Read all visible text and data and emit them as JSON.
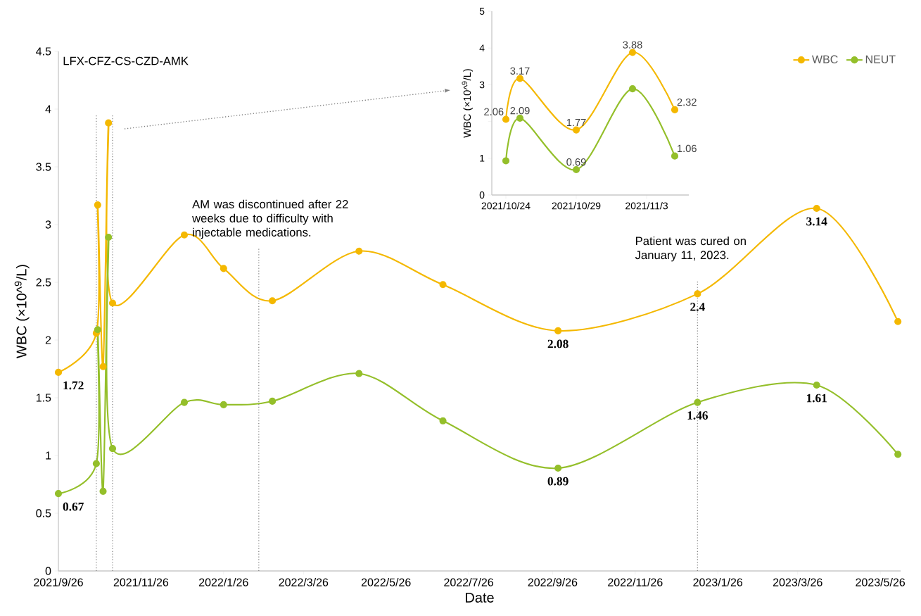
{
  "chart_data": [
    {
      "type": "line",
      "xlabel": "Date",
      "ylabel": "WBC (×10^$^{9}$/L)",
      "x": [
        "2021-09-26",
        "2021-10-24",
        "2021-10-25",
        "2021-10-29",
        "2021-11-02",
        "2021-11-05",
        "2021-12-28",
        "2022-01-26",
        "2022-03-03",
        "2022-05-06",
        "2022-07-07",
        "2022-09-30",
        "2023-01-11",
        "2023-04-09",
        "2023-06-08"
      ],
      "xlim": [
        "2021-09-26",
        "2023-06-10"
      ],
      "xticks": [
        {
          "value": "2021-09-26",
          "label": "2021/9/26"
        },
        {
          "value": "2021-11-26",
          "label": "2021/11/26"
        },
        {
          "value": "2022-01-26",
          "label": "2022/1/26"
        },
        {
          "value": "2022-03-26",
          "label": "2022/3/26"
        },
        {
          "value": "2022-05-26",
          "label": "2022/5/26"
        },
        {
          "value": "2022-07-26",
          "label": "2022/7/26"
        },
        {
          "value": "2022-09-26",
          "label": "2022/9/26"
        },
        {
          "value": "2022-11-26",
          "label": "2022/11/26"
        },
        {
          "value": "2023-01-26",
          "label": "2023/1/26"
        },
        {
          "value": "2023-03-26",
          "label": "2023/3/26"
        },
        {
          "value": "2023-05-26",
          "label": "2023/5/26"
        }
      ],
      "ylim": [
        0,
        4.5
      ],
      "yticks": [
        0,
        0.5,
        1,
        1.5,
        2,
        2.5,
        3,
        3.5,
        4,
        4.5
      ],
      "marker": "circle",
      "legend": "top right",
      "series": [
        {
          "name": "WBC",
          "color": "#f4b800",
          "values": [
            1.72,
            2.06,
            3.17,
            1.77,
            3.88,
            2.32,
            2.91,
            2.62,
            2.34,
            2.77,
            2.48,
            2.08,
            2.4,
            3.14,
            2.16
          ],
          "value_labels": [
            "1.72",
            null,
            null,
            null,
            null,
            null,
            null,
            null,
            null,
            null,
            null,
            "2.08",
            "2.4",
            "3.14",
            null
          ]
        },
        {
          "name": "NEUT",
          "color": "#94bf2a",
          "values": [
            0.67,
            0.93,
            2.09,
            0.69,
            2.89,
            1.06,
            1.46,
            1.44,
            1.47,
            1.71,
            1.3,
            0.89,
            1.46,
            1.61,
            1.01
          ],
          "value_labels": [
            "0.67",
            null,
            null,
            null,
            null,
            null,
            null,
            null,
            null,
            null,
            null,
            "0.89",
            "1.46",
            "1.61",
            null
          ]
        }
      ],
      "ref_lines": [
        {
          "axis": "x",
          "value": "2021-10-24",
          "color": "#7f7f7f",
          "line_style": "dotted"
        },
        {
          "axis": "x",
          "value": "2021-11-05",
          "color": "#7f7f7f",
          "line_style": "dotted"
        },
        {
          "axis": "x",
          "value": "2022-02-21",
          "color": "#7f7f7f",
          "line_style": "dotted",
          "label": "AM was discontinued after 22 weeks due to difficulty with injectable medications."
        },
        {
          "axis": "x",
          "value": "2023-01-11",
          "color": "#7f7f7f",
          "line_style": "dotted",
          "label": "Patient was cured on January 11, 2023."
        }
      ],
      "annotations": [
        "LFX-CFZ-CS-CZD-AMK"
      ]
    },
    {
      "type": "line",
      "ylabel": "WBC (×10^$^{9}$/L)",
      "x": [
        "2021-10-24",
        "2021-10-25",
        "2021-10-29",
        "2021-11-02",
        "2021-11-05"
      ],
      "xlim": [
        "2021-10-23",
        "2021-11-06"
      ],
      "xticks": [
        {
          "value": "2021-10-24",
          "label": "2021/10/24"
        },
        {
          "value": "2021-10-29",
          "label": "2021/10/29"
        },
        {
          "value": "2021-11-03",
          "label": "2021/11/3"
        }
      ],
      "ylim": [
        0,
        5
      ],
      "yticks": [
        0,
        1,
        {
          "value": 2,
          "label": null
        },
        3,
        4,
        5
      ],
      "marker": "circle",
      "series": [
        {
          "color": "#f4b800",
          "values": [
            2.06,
            3.17,
            1.77,
            3.88,
            2.32
          ],
          "value_labels": [
            "2.06",
            "3.17",
            "1.77",
            "3.88",
            "2.32"
          ]
        },
        {
          "color": "#94bf2a",
          "values": [
            0.93,
            2.09,
            0.69,
            2.89,
            1.06
          ],
          "value_labels": [
            null,
            "2.09",
            "0.69",
            null,
            "1.06"
          ]
        }
      ]
    }
  ]
}
